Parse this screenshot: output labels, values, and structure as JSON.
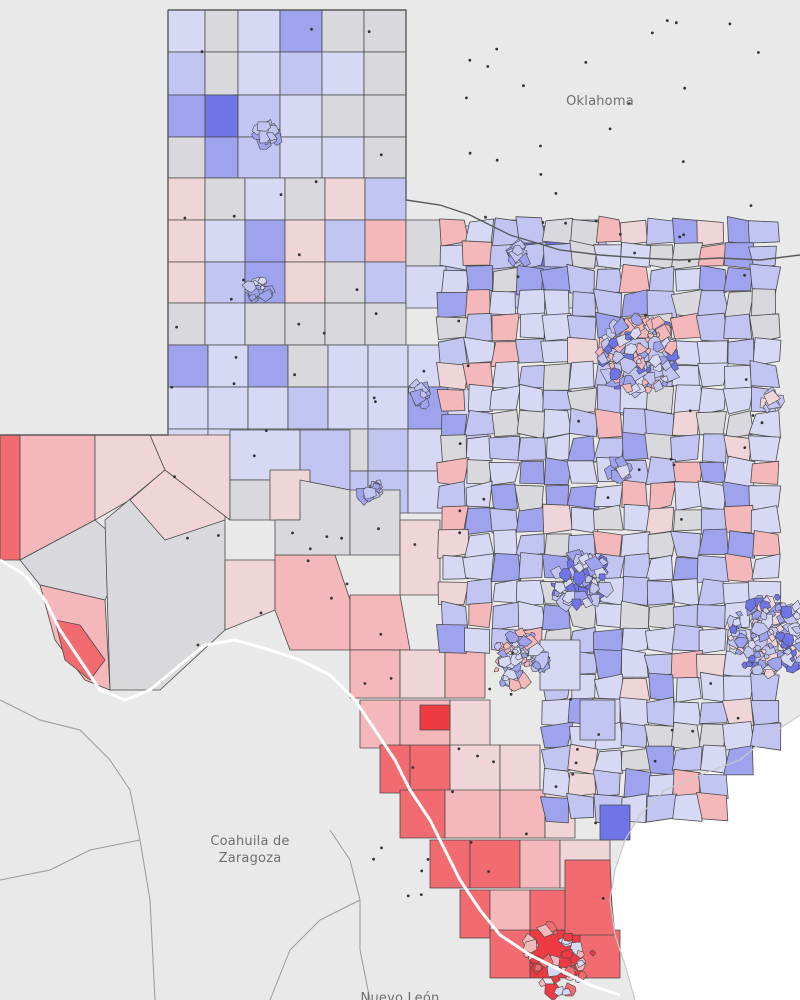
{
  "map": {
    "labels": {
      "oklahoma": "Oklahoma",
      "coahuila_line1": "Coahuila de",
      "coahuila_line2": "Zaragoza",
      "nuevo_leon": "Nuevo León"
    },
    "colors": {
      "land": "#e9e9e9",
      "water": "#ffffff",
      "neutral": "#d9d9dd",
      "border": "#4a4a4a",
      "strong_red": "#ee3a43",
      "red": "#f26b70",
      "light_red": "#f5b8ba",
      "pale_red": "#efd5d7",
      "strong_blue": "#6f74e6",
      "blue": "#9fa3ee",
      "light_blue": "#c2c5f2",
      "pale_blue": "#d6d8f4"
    }
  }
}
